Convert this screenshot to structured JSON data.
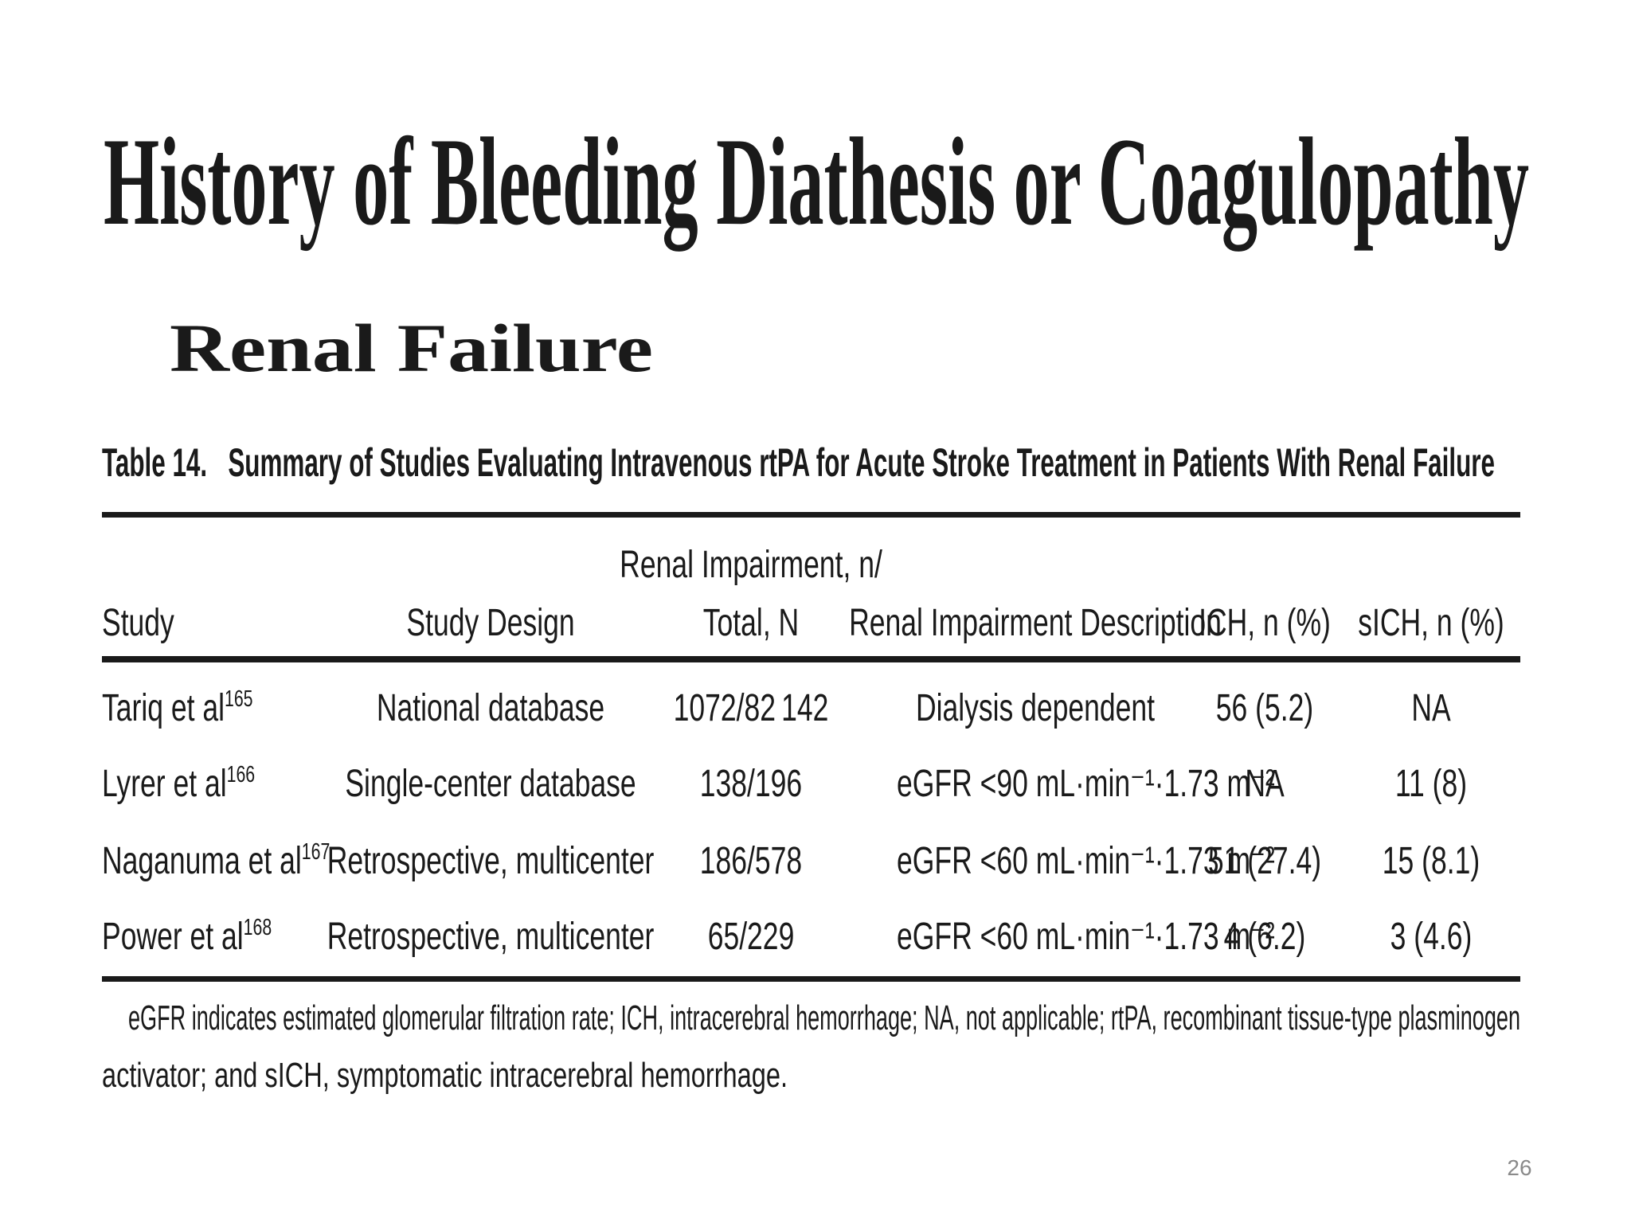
{
  "title": "History of Bleeding Diathesis or Coagulopathy",
  "subtitle": "Renal Failure",
  "table": {
    "caption": "Table 14.   Summary of Studies Evaluating Intravenous rtPA for Acute Stroke Treatment in Patients With Renal Failure",
    "headers": [
      [
        "Study"
      ],
      [
        "Study Design"
      ],
      [
        "Renal Impairment, n/",
        "Total, N"
      ],
      [
        "Renal Impairment Description"
      ],
      [
        "ICH, n (%)"
      ],
      [
        "sICH, n (%)"
      ]
    ],
    "rows": [
      [
        {
          "text": "Tariq et al",
          "ref": "165"
        },
        "National database",
        "1072/82 142",
        "Dialysis dependent",
        "56 (5.2)",
        "NA"
      ],
      [
        {
          "text": "Lyrer et al",
          "ref": "166"
        },
        "Single-center database",
        "138/196",
        "eGFR <90 mL·min⁻¹·1.73 m⁻²",
        "NA",
        "11 (8)"
      ],
      [
        {
          "text": "Naganuma et al",
          "ref": "167"
        },
        "Retrospective, multicenter",
        "186/578",
        "eGFR <60 mL·min⁻¹·1.73 m⁻²",
        "51 (27.4)",
        "15 (8.1)"
      ],
      [
        {
          "text": "Power et al",
          "ref": "168"
        },
        "Retrospective, multicenter",
        "65/229",
        "eGFR <60 mL·min⁻¹·1.73 m⁻²",
        "4 (6.2)",
        "3 (4.6)"
      ]
    ],
    "footnote": [
      "eGFR indicates estimated glomerular filtration rate; ICH, intracerebral hemorrhage; NA, not applicable; rtPA, recombinant tissue-type plasminogen",
      "activator; and sICH, symptomatic intracerebral hemorrhage."
    ]
  },
  "page_number": "26"
}
